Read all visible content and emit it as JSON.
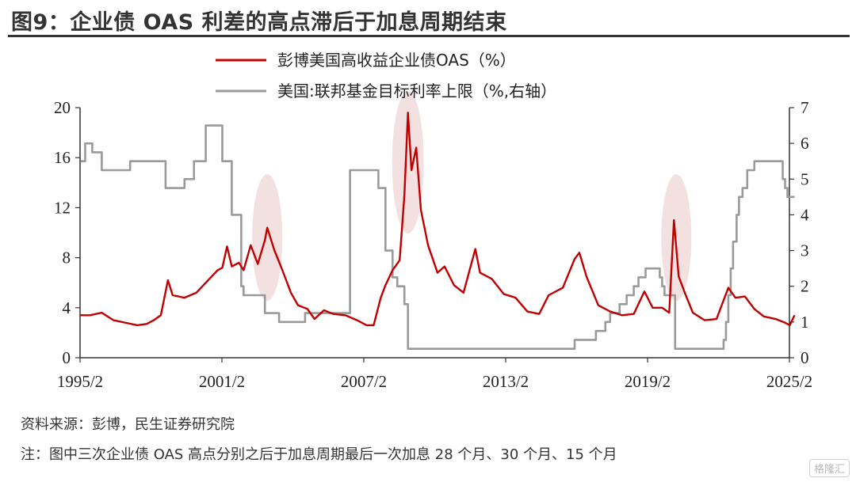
{
  "title": "图9：企业债 OAS 利差的高点滞后于加息周期结束",
  "source": "资料来源：彭博，民生证券研究院",
  "note": "注：图中三次企业债 OAS 高点分别之后于加息周期最后一次加息 28 个月、30 个月、15 个月",
  "watermark": "格隆汇",
  "colors": {
    "oas": "#c00000",
    "fed": "#9a9a9a",
    "highlight": "#e8c9c6"
  },
  "chart_data": {
    "type": "line",
    "x_ticks": [
      "1995/2",
      "2001/2",
      "2007/2",
      "2013/2",
      "2019/2",
      "2025/2"
    ],
    "xlim": [
      "1995/2",
      "2025/2"
    ],
    "left_axis": {
      "lim": [
        0,
        20
      ],
      "ticks": [
        0,
        4,
        8,
        12,
        16,
        20
      ]
    },
    "right_axis": {
      "lim": [
        0,
        7
      ],
      "ticks": [
        0,
        1,
        2,
        3,
        4,
        5,
        6,
        7
      ]
    },
    "legend_position": "top-center",
    "highlights": [
      2003.0,
      2008.95,
      2020.3
    ],
    "series": [
      {
        "name": "彭博美国高收益企业债OAS（%）",
        "axis": "left",
        "color": "#c00000",
        "points": [
          [
            1995.1,
            3.4
          ],
          [
            1995.5,
            3.4
          ],
          [
            1996.0,
            3.6
          ],
          [
            1996.5,
            3.0
          ],
          [
            1997.0,
            2.8
          ],
          [
            1997.5,
            2.6
          ],
          [
            1997.9,
            2.7
          ],
          [
            1998.2,
            3.0
          ],
          [
            1998.5,
            3.4
          ],
          [
            1998.8,
            6.2
          ],
          [
            1999.0,
            5.0
          ],
          [
            1999.5,
            4.8
          ],
          [
            2000.0,
            5.2
          ],
          [
            2000.5,
            6.2
          ],
          [
            2000.9,
            7.0
          ],
          [
            2001.1,
            7.2
          ],
          [
            2001.3,
            8.9
          ],
          [
            2001.5,
            7.3
          ],
          [
            2001.8,
            7.6
          ],
          [
            2002.0,
            7.0
          ],
          [
            2002.3,
            9.0
          ],
          [
            2002.6,
            7.5
          ],
          [
            2002.9,
            9.4
          ],
          [
            2003.0,
            10.4
          ],
          [
            2003.3,
            8.6
          ],
          [
            2003.6,
            7.2
          ],
          [
            2004.0,
            5.2
          ],
          [
            2004.3,
            4.2
          ],
          [
            2004.7,
            3.9
          ],
          [
            2005.0,
            3.1
          ],
          [
            2005.4,
            3.8
          ],
          [
            2005.8,
            3.5
          ],
          [
            2006.3,
            3.4
          ],
          [
            2006.8,
            3.0
          ],
          [
            2007.2,
            2.6
          ],
          [
            2007.5,
            2.6
          ],
          [
            2007.8,
            4.8
          ],
          [
            2008.0,
            5.8
          ],
          [
            2008.3,
            7.0
          ],
          [
            2008.6,
            7.8
          ],
          [
            2008.8,
            13.0
          ],
          [
            2008.95,
            19.6
          ],
          [
            2009.1,
            15.0
          ],
          [
            2009.3,
            16.8
          ],
          [
            2009.5,
            11.8
          ],
          [
            2009.8,
            9.0
          ],
          [
            2010.2,
            6.8
          ],
          [
            2010.5,
            7.3
          ],
          [
            2010.9,
            5.8
          ],
          [
            2011.3,
            5.2
          ],
          [
            2011.8,
            8.7
          ],
          [
            2012.0,
            6.8
          ],
          [
            2012.5,
            6.3
          ],
          [
            2013.0,
            5.1
          ],
          [
            2013.5,
            4.8
          ],
          [
            2014.0,
            3.7
          ],
          [
            2014.5,
            3.5
          ],
          [
            2014.9,
            5.0
          ],
          [
            2015.5,
            5.6
          ],
          [
            2016.0,
            7.9
          ],
          [
            2016.2,
            8.4
          ],
          [
            2016.5,
            6.5
          ],
          [
            2017.0,
            4.2
          ],
          [
            2017.5,
            3.7
          ],
          [
            2018.0,
            3.4
          ],
          [
            2018.5,
            3.5
          ],
          [
            2018.95,
            5.3
          ],
          [
            2019.3,
            4.0
          ],
          [
            2019.7,
            4.0
          ],
          [
            2020.0,
            3.6
          ],
          [
            2020.2,
            11.0
          ],
          [
            2020.4,
            6.5
          ],
          [
            2020.7,
            5.0
          ],
          [
            2021.0,
            3.6
          ],
          [
            2021.5,
            3.0
          ],
          [
            2022.0,
            3.1
          ],
          [
            2022.5,
            5.6
          ],
          [
            2022.8,
            4.8
          ],
          [
            2023.2,
            4.9
          ],
          [
            2023.6,
            3.9
          ],
          [
            2024.0,
            3.3
          ],
          [
            2024.5,
            3.1
          ],
          [
            2024.9,
            2.8
          ],
          [
            2025.1,
            2.6
          ],
          [
            2025.3,
            3.4
          ]
        ]
      },
      {
        "name": "美国:联邦基金目标利率上限（%,右轴）",
        "axis": "right",
        "color": "#9a9a9a",
        "points": [
          [
            1995.1,
            5.5
          ],
          [
            1995.3,
            6.0
          ],
          [
            1995.6,
            5.75
          ],
          [
            1996.0,
            5.25
          ],
          [
            1997.2,
            5.5
          ],
          [
            1998.7,
            4.75
          ],
          [
            1999.5,
            5.0
          ],
          [
            1999.9,
            5.5
          ],
          [
            2000.4,
            6.5
          ],
          [
            2001.0,
            6.5
          ],
          [
            2001.1,
            5.5
          ],
          [
            2001.5,
            4.0
          ],
          [
            2001.9,
            2.0
          ],
          [
            2002.0,
            1.75
          ],
          [
            2002.9,
            1.25
          ],
          [
            2003.5,
            1.0
          ],
          [
            2004.5,
            1.0
          ],
          [
            2004.6,
            1.25
          ],
          [
            2006.5,
            5.25
          ],
          [
            2007.6,
            5.25
          ],
          [
            2007.7,
            4.75
          ],
          [
            2008.0,
            3.0
          ],
          [
            2008.3,
            2.25
          ],
          [
            2008.5,
            2.0
          ],
          [
            2008.8,
            1.5
          ],
          [
            2008.95,
            0.25
          ],
          [
            2015.9,
            0.25
          ],
          [
            2016.0,
            0.5
          ],
          [
            2016.9,
            0.75
          ],
          [
            2017.3,
            1.0
          ],
          [
            2017.5,
            1.25
          ],
          [
            2017.9,
            1.5
          ],
          [
            2018.2,
            1.75
          ],
          [
            2018.5,
            2.0
          ],
          [
            2018.7,
            2.25
          ],
          [
            2019.0,
            2.5
          ],
          [
            2019.5,
            2.5
          ],
          [
            2019.6,
            2.25
          ],
          [
            2019.7,
            2.0
          ],
          [
            2019.8,
            1.75
          ],
          [
            2020.2,
            1.75
          ],
          [
            2020.25,
            0.25
          ],
          [
            2022.2,
            0.25
          ],
          [
            2022.3,
            0.5
          ],
          [
            2022.4,
            1.0
          ],
          [
            2022.5,
            1.75
          ],
          [
            2022.6,
            2.5
          ],
          [
            2022.7,
            3.25
          ],
          [
            2022.85,
            4.0
          ],
          [
            2022.95,
            4.5
          ],
          [
            2023.1,
            4.75
          ],
          [
            2023.3,
            5.25
          ],
          [
            2023.6,
            5.5
          ],
          [
            2024.7,
            5.5
          ],
          [
            2024.8,
            5.0
          ],
          [
            2024.9,
            4.75
          ],
          [
            2025.0,
            4.5
          ],
          [
            2025.3,
            4.5
          ]
        ]
      }
    ]
  }
}
